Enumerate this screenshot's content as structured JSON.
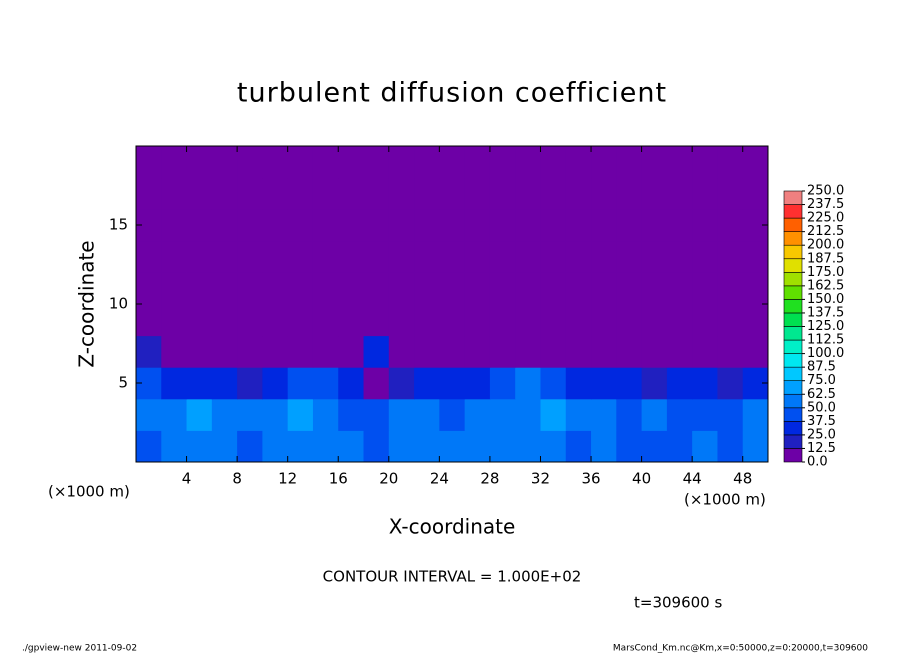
{
  "chart_data": {
    "type": "contour",
    "title": "turbulent diffusion coefficient",
    "xlabel": "X-coordinate",
    "ylabel": "Z-coordinate",
    "x_unit_left": "(×1000 m)",
    "x_unit_right": "(×1000 m)",
    "annotation": "CONTOUR INTERVAL = 1.000E+02",
    "time_label": "t=309600 s",
    "footer_left": "./gpview-new  2011-09-02",
    "footer_right": "MarsCond_Km.nc@Km,x=0:50000,z=0:20000,t=309600",
    "xlim": [
      0,
      50
    ],
    "ylim": [
      0,
      20
    ],
    "xticks": [
      4,
      8,
      12,
      16,
      20,
      24,
      28,
      32,
      36,
      40,
      44,
      48
    ],
    "yticks": [
      5,
      10,
      15
    ],
    "x": [
      1,
      3,
      5,
      7,
      9,
      11,
      13,
      15,
      17,
      19,
      21,
      23,
      25,
      27,
      29,
      31,
      33,
      35,
      37,
      39,
      41,
      43,
      45,
      47,
      49
    ],
    "z": [
      1,
      3,
      5,
      7,
      9,
      11,
      13,
      15,
      17,
      19
    ],
    "values": [
      [
        45,
        55,
        60,
        50,
        45,
        55,
        60,
        55,
        50,
        45,
        55,
        60,
        50,
        55,
        60,
        55,
        50,
        45,
        50,
        45,
        40,
        45,
        50,
        45,
        55
      ],
      [
        50,
        55,
        65,
        60,
        50,
        55,
        70,
        60,
        45,
        40,
        50,
        55,
        45,
        50,
        55,
        60,
        65,
        55,
        50,
        45,
        50,
        45,
        40,
        45,
        50
      ],
      [
        40,
        35,
        30,
        25,
        20,
        30,
        40,
        45,
        35,
        10,
        20,
        30,
        25,
        30,
        45,
        50,
        40,
        35,
        30,
        25,
        20,
        25,
        30,
        20,
        35
      ],
      [
        15,
        0,
        0,
        0,
        0,
        0,
        0,
        0,
        5,
        30,
        0,
        0,
        0,
        0,
        0,
        0,
        0,
        0,
        0,
        0,
        0,
        0,
        0,
        0,
        10
      ],
      [
        0,
        0,
        0,
        0,
        0,
        0,
        0,
        0,
        0,
        0,
        0,
        0,
        0,
        0,
        0,
        0,
        0,
        0,
        0,
        0,
        0,
        0,
        0,
        0,
        0
      ],
      [
        0,
        0,
        0,
        0,
        0,
        0,
        0,
        0,
        0,
        0,
        0,
        0,
        0,
        0,
        0,
        0,
        0,
        0,
        0,
        0,
        0,
        0,
        0,
        0,
        0
      ],
      [
        0,
        0,
        0,
        0,
        0,
        0,
        0,
        0,
        0,
        0,
        0,
        0,
        0,
        0,
        0,
        0,
        0,
        0,
        0,
        0,
        0,
        0,
        0,
        0,
        0
      ],
      [
        0,
        0,
        0,
        0,
        0,
        0,
        0,
        0,
        0,
        0,
        0,
        0,
        0,
        0,
        0,
        0,
        0,
        0,
        0,
        0,
        0,
        0,
        0,
        0,
        0
      ],
      [
        0,
        0,
        0,
        0,
        0,
        0,
        0,
        0,
        0,
        0,
        0,
        0,
        0,
        0,
        0,
        0,
        0,
        0,
        0,
        0,
        0,
        0,
        0,
        0,
        0
      ],
      [
        0,
        0,
        0,
        0,
        0,
        0,
        0,
        0,
        0,
        0,
        0,
        0,
        0,
        0,
        0,
        0,
        0,
        0,
        0,
        0,
        0,
        0,
        0,
        0,
        0
      ]
    ],
    "levels": [
      {
        "value": 0,
        "label": "0.0"
      },
      {
        "value": 12.5,
        "label": "12.5"
      },
      {
        "value": 25,
        "label": "25.0"
      },
      {
        "value": 37.5,
        "label": "37.5"
      },
      {
        "value": 50,
        "label": "50.0"
      },
      {
        "value": 62.5,
        "label": "62.5"
      },
      {
        "value": 75,
        "label": "75.0"
      },
      {
        "value": 87.5,
        "label": "87.5"
      },
      {
        "value": 100,
        "label": "100.0"
      },
      {
        "value": 112.5,
        "label": "112.5"
      },
      {
        "value": 125,
        "label": "125.0"
      },
      {
        "value": 137.5,
        "label": "137.5"
      },
      {
        "value": 150,
        "label": "150.0"
      },
      {
        "value": 162.5,
        "label": "162.5"
      },
      {
        "value": 175,
        "label": "175.0"
      },
      {
        "value": 187.5,
        "label": "187.5"
      },
      {
        "value": 200,
        "label": "200.0"
      },
      {
        "value": 212.5,
        "label": "212.5"
      },
      {
        "value": 225,
        "label": "225.0"
      },
      {
        "value": 237.5,
        "label": "237.5"
      },
      {
        "value": 250,
        "label": "250.0"
      }
    ],
    "colors": [
      "#6d00a6",
      "#2020c0",
      "#0028e0",
      "#0050f0",
      "#0078f8",
      "#00a0ff",
      "#00c8ff",
      "#00e8f0",
      "#00f0c8",
      "#00e890",
      "#00e050",
      "#20e020",
      "#60e000",
      "#a0e000",
      "#e0e000",
      "#f8c800",
      "#ff9000",
      "#ff6000",
      "#ff3030",
      "#f08080"
    ]
  }
}
